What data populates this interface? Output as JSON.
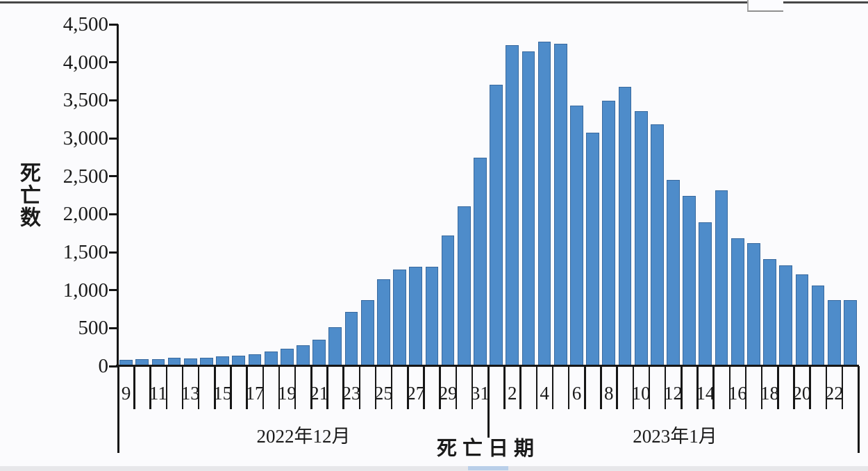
{
  "chart_data": {
    "type": "bar",
    "title": "",
    "ylabel": "死亡数",
    "xlabel": "死亡日期",
    "ylim": [
      0,
      4500
    ],
    "y_tick_interval": 500,
    "y_tick_labels": [
      "0",
      "500",
      "1,000",
      "1,500",
      "2,000",
      "2,500",
      "3,000",
      "3,500",
      "4,000",
      "4,500"
    ],
    "x_tick_labels": [
      "9",
      "11",
      "13",
      "15",
      "17",
      "19",
      "21",
      "23",
      "25",
      "27",
      "29",
      "31",
      "2",
      "4",
      "6",
      "8",
      "10",
      "12",
      "14",
      "16",
      "18",
      "20",
      "22"
    ],
    "month_groups": [
      {
        "label": "2022年12月",
        "days": 23
      },
      {
        "label": "2023年1月",
        "days": 23
      }
    ],
    "categories": [
      "12-09",
      "12-10",
      "12-11",
      "12-12",
      "12-13",
      "12-14",
      "12-15",
      "12-16",
      "12-17",
      "12-18",
      "12-19",
      "12-20",
      "12-21",
      "12-22",
      "12-23",
      "12-24",
      "12-25",
      "12-26",
      "12-27",
      "12-28",
      "12-29",
      "12-30",
      "12-31",
      "01-01",
      "01-02",
      "01-03",
      "01-04",
      "01-05",
      "01-06",
      "01-07",
      "01-08",
      "01-09",
      "01-10",
      "01-11",
      "01-12",
      "01-13",
      "01-14",
      "01-15",
      "01-16",
      "01-17",
      "01-18",
      "01-19",
      "01-20",
      "01-21",
      "01-22",
      "01-23"
    ],
    "values": [
      80,
      95,
      95,
      110,
      105,
      110,
      125,
      135,
      160,
      190,
      230,
      270,
      345,
      510,
      715,
      865,
      1140,
      1270,
      1310,
      1310,
      1720,
      2100,
      2740,
      3700,
      4230,
      4145,
      4270,
      4240,
      3430,
      3070,
      3490,
      3680,
      3360,
      3180,
      2450,
      2240,
      1890,
      2315,
      1685,
      1620,
      1410,
      1330,
      1205,
      1060,
      865,
      865
    ],
    "bar_color": "#4e8cca",
    "bar_border_color": "#38699e",
    "axis_color": "#161616",
    "grid": false,
    "legend": false
  }
}
